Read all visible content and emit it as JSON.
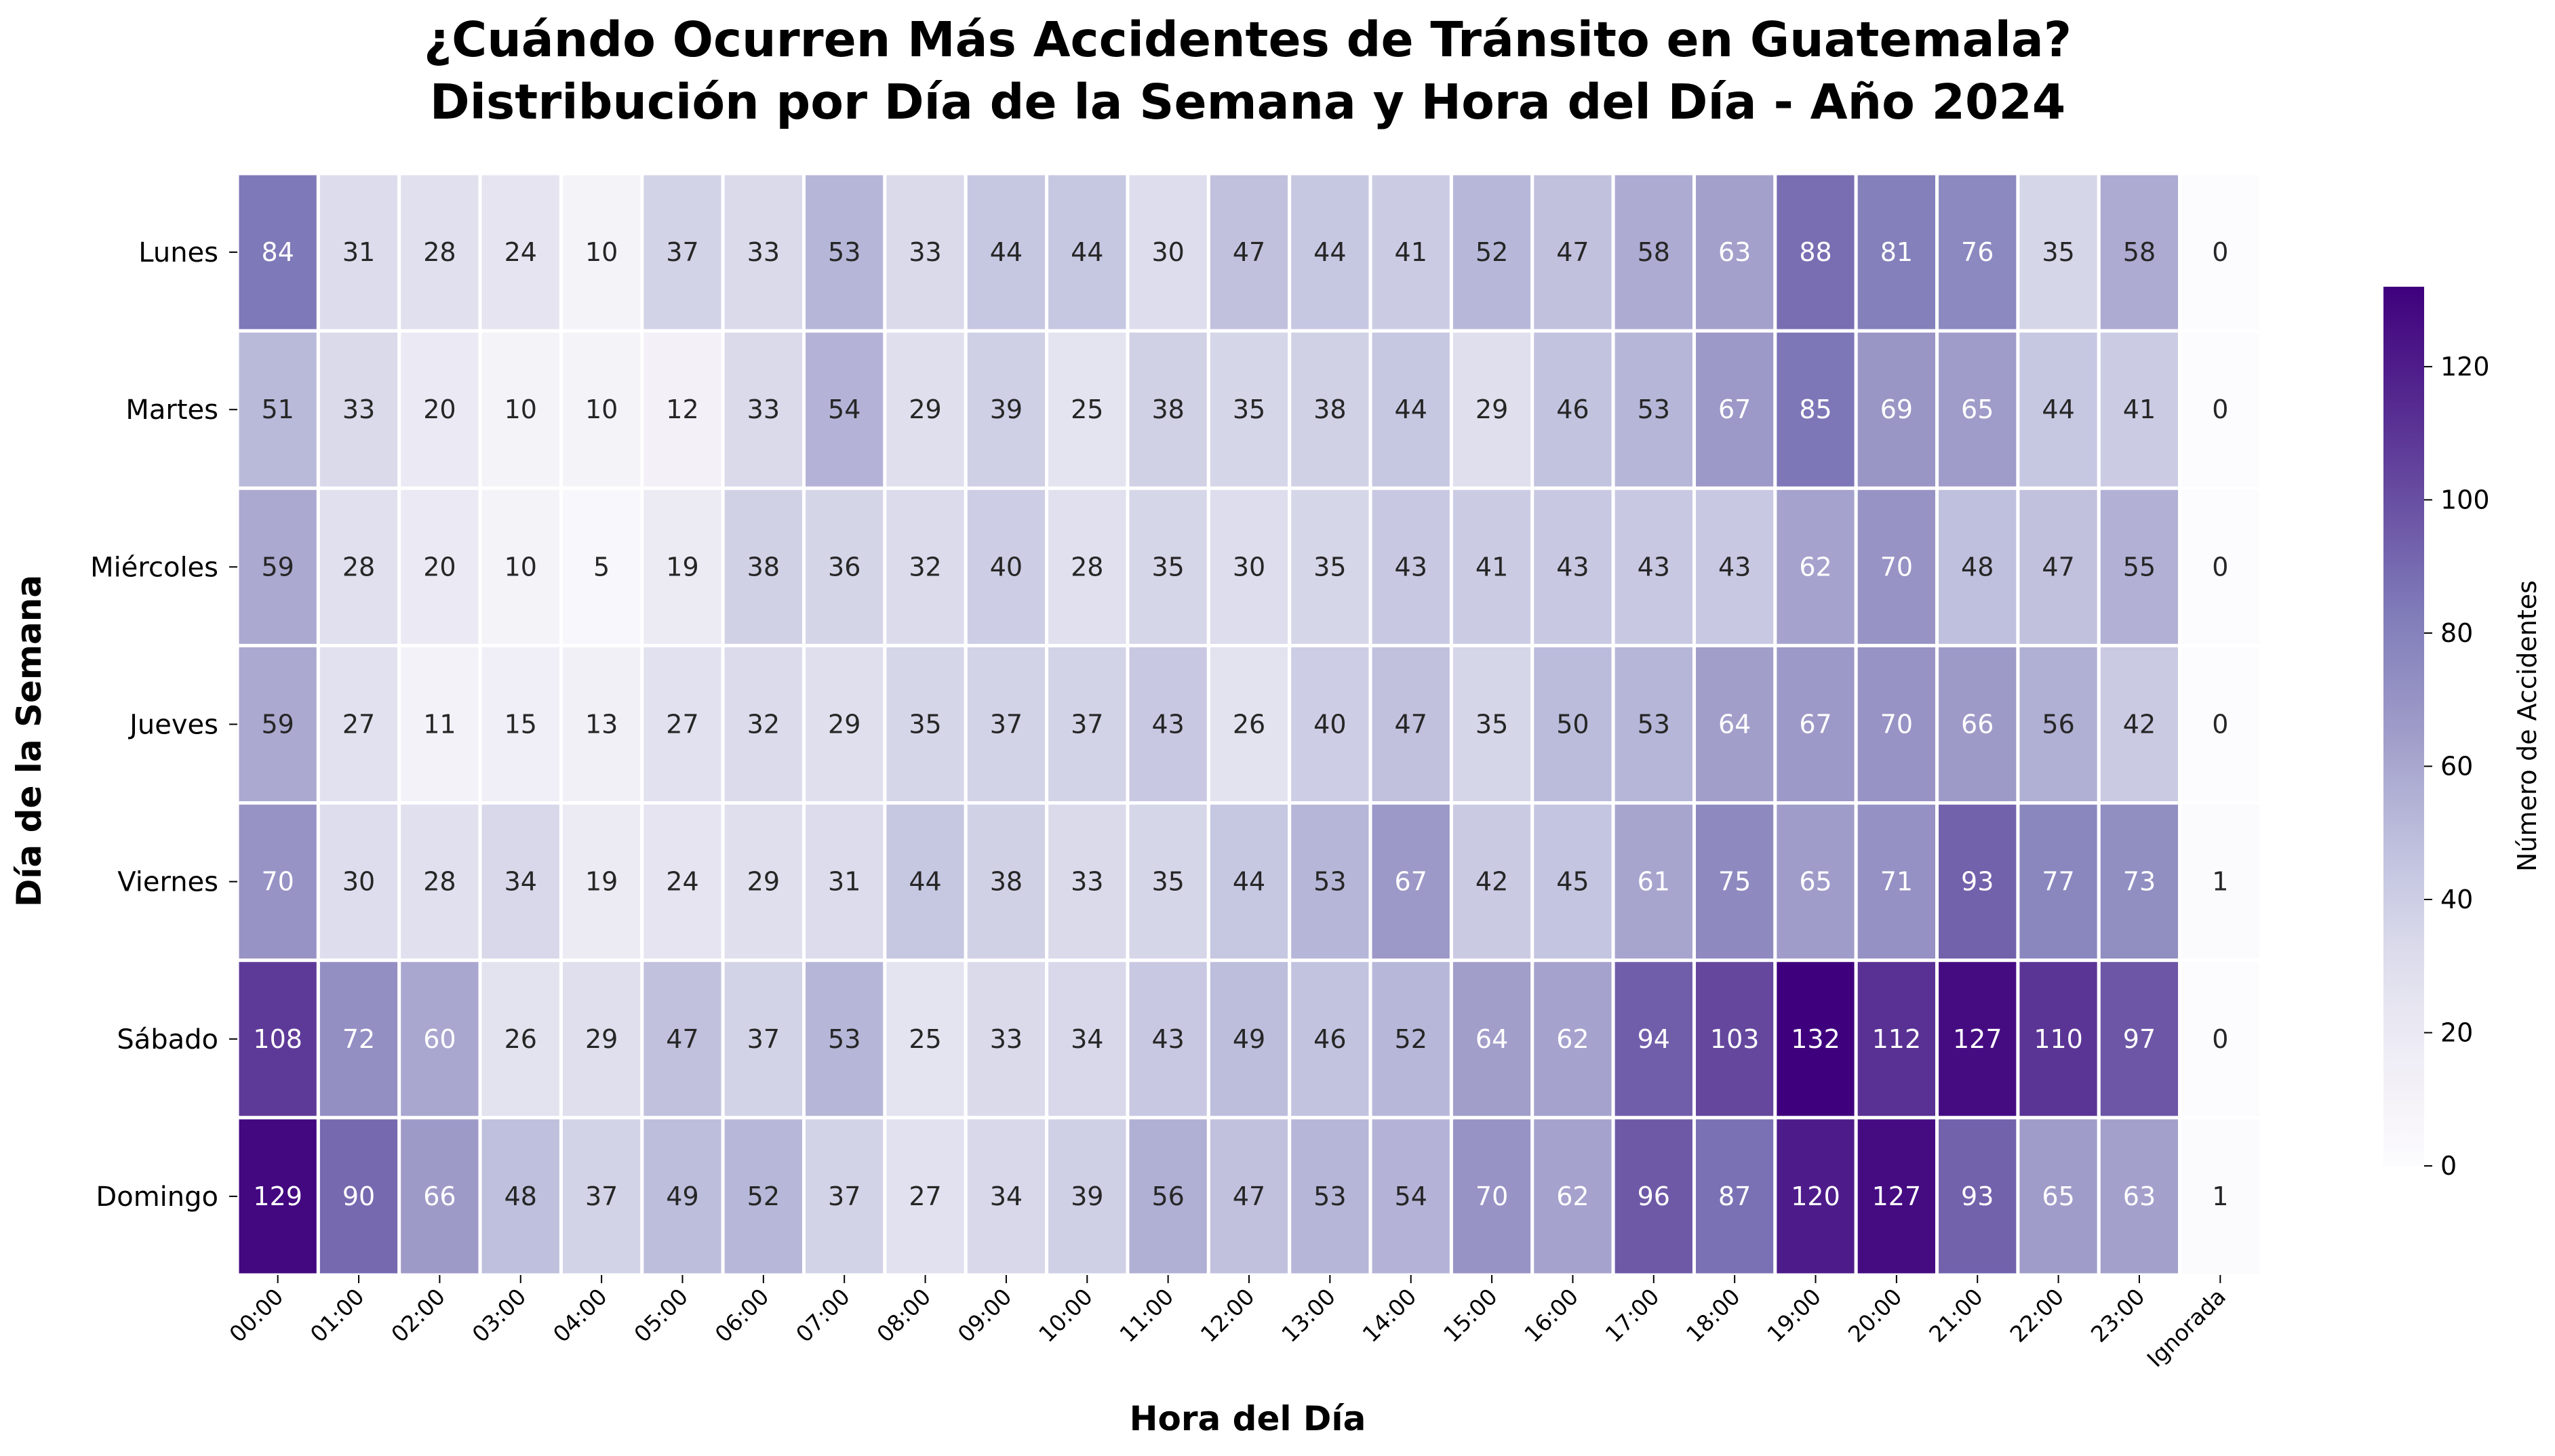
{
  "chart_data": {
    "type": "heatmap",
    "title_line1": "¿Cuándo Ocurren Más Accidentes de Tránsito en Guatemala?",
    "title_line2": "Distribución por Día de la Semana y Hora del Día - Año 2024",
    "xlabel": "Hora del Día",
    "ylabel": "Día de la Semana",
    "x": [
      "00:00",
      "01:00",
      "02:00",
      "03:00",
      "04:00",
      "05:00",
      "06:00",
      "07:00",
      "08:00",
      "09:00",
      "10:00",
      "11:00",
      "12:00",
      "13:00",
      "14:00",
      "15:00",
      "16:00",
      "17:00",
      "18:00",
      "19:00",
      "20:00",
      "21:00",
      "22:00",
      "23:00",
      "Ignorada"
    ],
    "y": [
      "Lunes",
      "Martes",
      "Miércoles",
      "Jueves",
      "Viernes",
      "Sábado",
      "Domingo"
    ],
    "values": [
      [
        84,
        31,
        28,
        24,
        10,
        37,
        33,
        53,
        33,
        44,
        44,
        30,
        47,
        44,
        41,
        52,
        47,
        58,
        63,
        88,
        81,
        76,
        35,
        58,
        0
      ],
      [
        51,
        33,
        20,
        10,
        10,
        12,
        33,
        54,
        29,
        39,
        25,
        38,
        35,
        38,
        44,
        29,
        46,
        53,
        67,
        85,
        69,
        65,
        44,
        41,
        0
      ],
      [
        59,
        28,
        20,
        10,
        5,
        19,
        38,
        36,
        32,
        40,
        28,
        35,
        30,
        35,
        43,
        41,
        43,
        43,
        43,
        62,
        70,
        48,
        47,
        55,
        0
      ],
      [
        59,
        27,
        11,
        15,
        13,
        27,
        32,
        29,
        35,
        37,
        37,
        43,
        26,
        40,
        47,
        35,
        50,
        53,
        64,
        67,
        70,
        66,
        56,
        42,
        0
      ],
      [
        70,
        30,
        28,
        34,
        19,
        24,
        29,
        31,
        44,
        38,
        33,
        35,
        44,
        53,
        67,
        42,
        45,
        61,
        75,
        65,
        71,
        93,
        77,
        73,
        1
      ],
      [
        108,
        72,
        60,
        26,
        29,
        47,
        37,
        53,
        25,
        33,
        34,
        43,
        49,
        46,
        52,
        64,
        62,
        94,
        103,
        132,
        112,
        127,
        110,
        97,
        0
      ],
      [
        129,
        90,
        66,
        48,
        37,
        49,
        52,
        37,
        27,
        34,
        39,
        56,
        47,
        53,
        54,
        70,
        62,
        96,
        87,
        120,
        127,
        93,
        65,
        63,
        1
      ]
    ],
    "colormap": "Purples",
    "colorbar": {
      "label": "Número de Accidentes",
      "range": [
        0,
        132
      ],
      "ticks": [
        0,
        20,
        40,
        60,
        80,
        100,
        120
      ]
    },
    "cell_label_dark_color": "#262626",
    "cell_label_light_color": "#ffffff",
    "cell_border_color": "#ffffff"
  }
}
